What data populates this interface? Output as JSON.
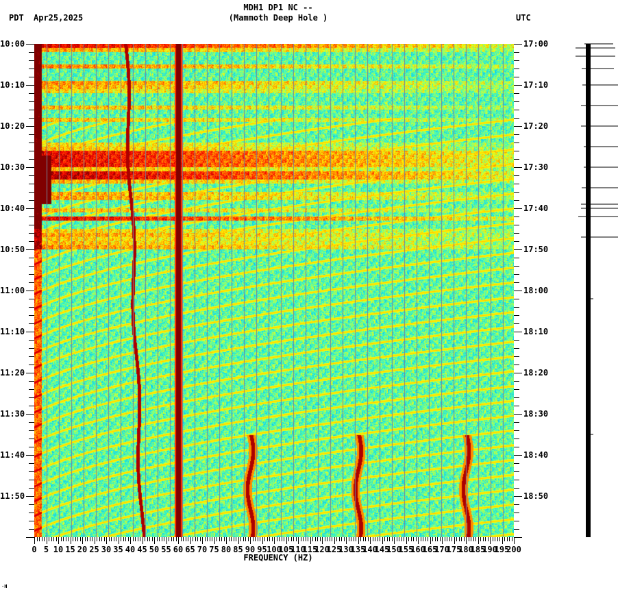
{
  "header": {
    "station_line": "MDH1 DP1 NC --",
    "location_line": "(Mammoth Deep Hole )",
    "left_timezone": "PDT",
    "date": "Apr25,2025",
    "right_timezone": "UTC"
  },
  "footer": {
    "corner_mark": "⋅Н"
  },
  "chart_data": {
    "type": "heatmap",
    "title": "MDH1 DP1 NC -- (Mammoth Deep Hole )",
    "subtitle": "Apr25,2025",
    "xlabel": "FREQUENCY (HZ)",
    "ylabel_left": "PDT",
    "ylabel_right": "UTC",
    "xlim": [
      0,
      200
    ],
    "x_ticks": [
      0,
      5,
      10,
      15,
      20,
      25,
      30,
      35,
      40,
      45,
      50,
      55,
      60,
      65,
      70,
      75,
      80,
      85,
      90,
      95,
      100,
      105,
      110,
      115,
      120,
      125,
      130,
      135,
      140,
      145,
      150,
      155,
      160,
      165,
      170,
      175,
      180,
      185,
      190,
      195,
      200
    ],
    "x_minor_tick_step": 1,
    "y_ticks_left": [
      "10:00",
      "10:10",
      "10:20",
      "10:30",
      "10:40",
      "10:50",
      "11:00",
      "11:10",
      "11:20",
      "11:30",
      "11:40",
      "11:50"
    ],
    "y_ticks_right": [
      "17:00",
      "17:10",
      "17:20",
      "17:30",
      "17:40",
      "17:50",
      "18:00",
      "18:10",
      "18:20",
      "18:30",
      "18:40",
      "18:50"
    ],
    "y_minor_tick_step_minutes": 2,
    "time_range_minutes": 120,
    "colormap": [
      "#00008f",
      "#0050ff",
      "#00bfff",
      "#40ffbf",
      "#ffff00",
      "#ff8000",
      "#ff0000",
      "#800000"
    ],
    "vertical_gridlines_every_hz": 5,
    "features": {
      "persistent_line_hz": 60,
      "low_freq_energy_hz": [
        0,
        3
      ],
      "broadband_bursts_pdt": [
        "10:00",
        "10:04",
        "10:27",
        "10:28",
        "10:30",
        "10:32",
        "10:42"
      ],
      "strong_noise_patch_pdt": [
        "10:27",
        "10:39"
      ],
      "wandering_lines": [
        {
          "start_hz": 38,
          "end_hz": 45,
          "span_pdt": [
            "10:00",
            "11:59"
          ]
        },
        {
          "start_hz": 90,
          "end_hz": 90,
          "span_pdt": [
            "11:35",
            "11:59"
          ]
        },
        {
          "start_hz": 135,
          "end_hz": 135,
          "span_pdt": [
            "11:35",
            "11:59"
          ]
        },
        {
          "start_hz": 180,
          "end_hz": 180,
          "span_pdt": [
            "11:35",
            "11:59"
          ]
        }
      ],
      "chirp_arcs": "curved yellow bands sweeping from ~20 Hz up toward ~200 Hz, repeating every ~3-4 minutes from 10:20 through 11:59"
    },
    "seismogram_trace": {
      "position": "right strip",
      "spike_times_pdt": [
        "10:00",
        "10:01",
        "10:03",
        "10:06",
        "10:10",
        "10:15",
        "10:20",
        "10:25",
        "10:30",
        "10:35",
        "10:39",
        "10:40",
        "10:42",
        "10:47",
        "11:02",
        "11:35"
      ]
    }
  }
}
